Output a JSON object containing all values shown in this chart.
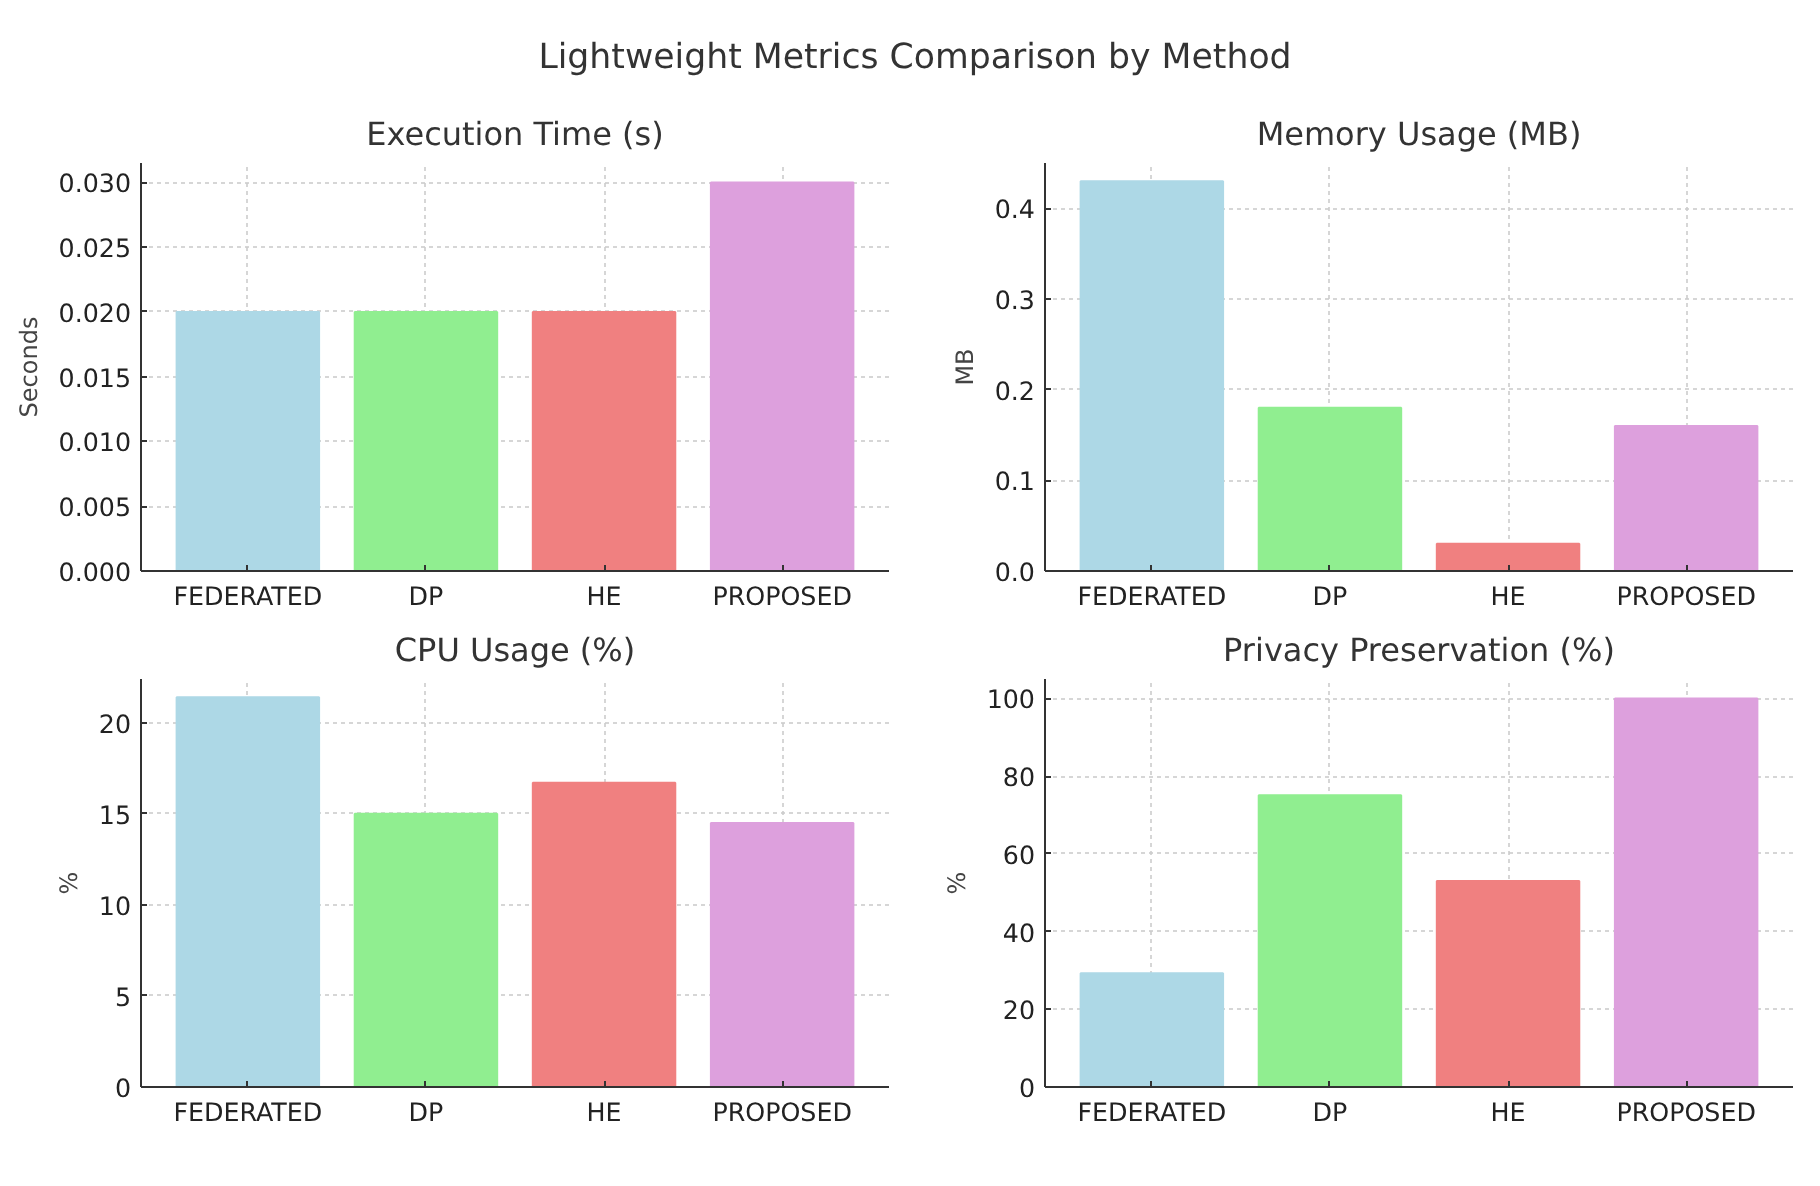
{
  "chart_data": [
    {
      "type": "other",
      "title": "Lightweight Metrics Comparison by Method"
    },
    {
      "type": "bar",
      "title": "Execution Time (s)",
      "ylabel": "Seconds",
      "categories": [
        "FEDERATED",
        "DP",
        "HE",
        "PROPOSED"
      ],
      "values": [
        0.02,
        0.02,
        0.02,
        0.03
      ],
      "colors": [
        "#add8e6",
        "#90ee90",
        "#f08080",
        "#dda0dd"
      ],
      "ylim": [
        0,
        0.0315
      ],
      "yticks": [
        {
          "value": 0,
          "label": "0.000"
        },
        {
          "value": 0.005,
          "label": "0.005"
        },
        {
          "value": 0.01,
          "label": "0.010"
        },
        {
          "value": 0.015,
          "label": "0.015"
        },
        {
          "value": 0.02,
          "label": "0.020"
        },
        {
          "value": 0.025,
          "label": "0.025"
        },
        {
          "value": 0.03,
          "label": "0.030"
        }
      ],
      "grid": true,
      "legend": false
    },
    {
      "type": "bar",
      "title": "Memory Usage (MB)",
      "ylabel": "MB",
      "categories": [
        "FEDERATED",
        "DP",
        "HE",
        "PROPOSED"
      ],
      "values": [
        0.43,
        0.18,
        0.03,
        0.16
      ],
      "colors": [
        "#add8e6",
        "#90ee90",
        "#f08080",
        "#dda0dd"
      ],
      "ylim": [
        0,
        0.45
      ],
      "yticks": [
        {
          "value": 0,
          "label": "0.0"
        },
        {
          "value": 0.1,
          "label": "0.1"
        },
        {
          "value": 0.2,
          "label": "0.2"
        },
        {
          "value": 0.3,
          "label": "0.3"
        },
        {
          "value": 0.4,
          "label": "0.4"
        }
      ],
      "grid": true,
      "legend": false
    },
    {
      "type": "bar",
      "title": "CPU Usage (%)",
      "ylabel": "%",
      "categories": [
        "FEDERATED",
        "DP",
        "HE",
        "PROPOSED"
      ],
      "values": [
        21.4,
        15.0,
        16.7,
        14.5
      ],
      "colors": [
        "#add8e6",
        "#90ee90",
        "#f08080",
        "#dda0dd"
      ],
      "ylim": [
        0,
        22.4
      ],
      "yticks": [
        0,
        5,
        10,
        15,
        20
      ],
      "grid": true,
      "legend": false
    },
    {
      "type": "bar",
      "title": "Privacy Preservation (%)",
      "ylabel": "%",
      "categories": [
        "FEDERATED",
        "DP",
        "HE",
        "PROPOSED"
      ],
      "values": [
        29.3,
        75.1,
        53.0,
        100
      ],
      "colors": [
        "#add8e6",
        "#90ee90",
        "#f08080",
        "#dda0dd"
      ],
      "ylim": [
        0,
        105
      ],
      "yticks": [
        0,
        20,
        40,
        60,
        80,
        100
      ],
      "grid": true,
      "legend": false
    }
  ]
}
